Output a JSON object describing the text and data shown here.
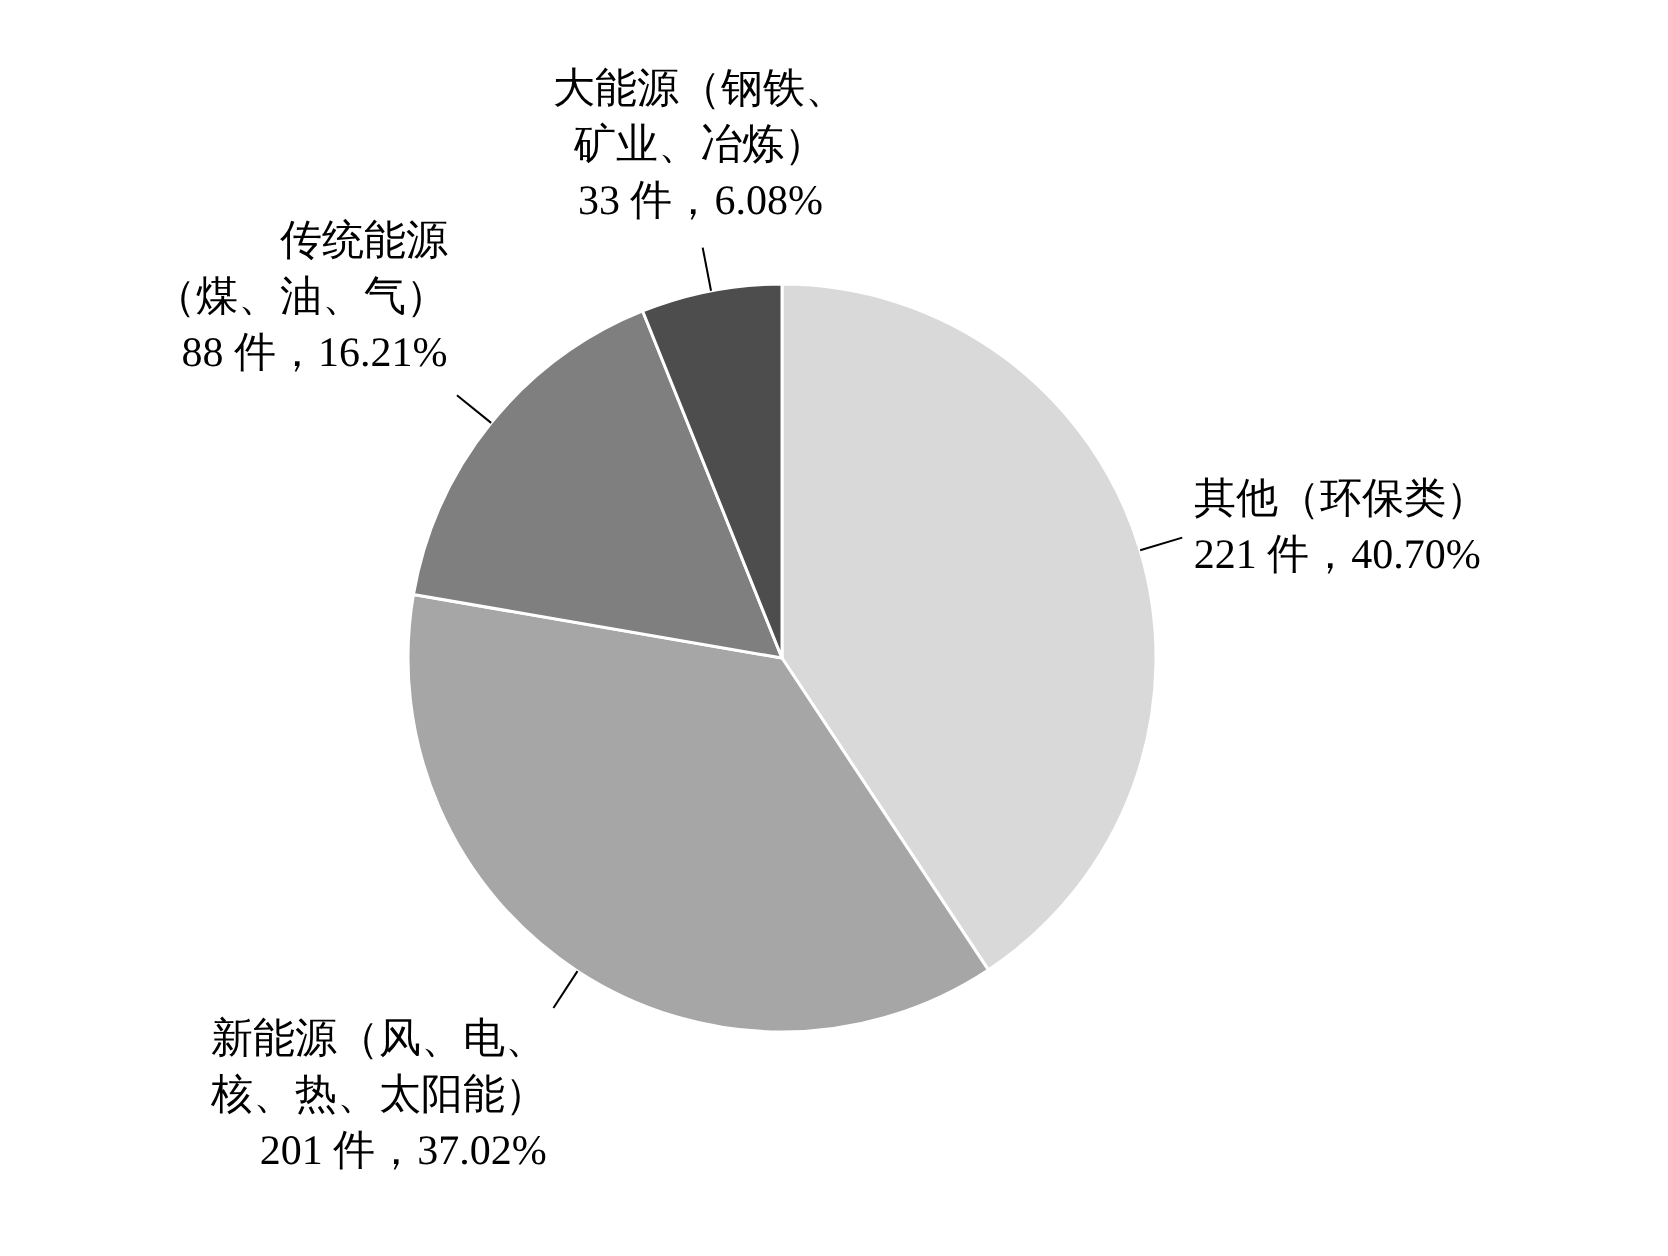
{
  "chart_data": {
    "type": "pie",
    "categories": [
      "其他（环保类）",
      "新能源（风、电、核、热、太阳能）",
      "传统能源（煤、油、气）",
      "大能源（钢铁、矿业、冶炼）"
    ],
    "values": [
      221,
      201,
      88,
      33
    ],
    "value_labels": [
      "221 件，40.70%",
      "201 件，37.02%",
      "88 件，16.21%",
      "33 件，6.08%"
    ],
    "colors": [
      "#d9d9d9",
      "#a6a6a6",
      "#7f7f7f",
      "#4d4d4d"
    ]
  }
}
